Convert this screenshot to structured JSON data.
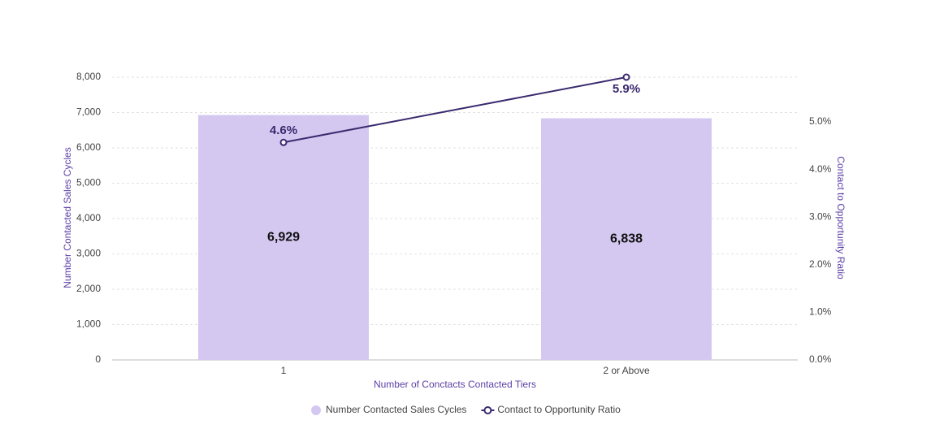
{
  "chart_data": {
    "type": "combo",
    "x_label": "Number of Conctacts Contacted Tiers",
    "y_label": "Number Contacted Sales Cycles",
    "y2_label": "Contact to Opportunity Ratio",
    "categories": [
      "1",
      "2 or Above"
    ],
    "series": [
      {
        "name": "Number Contacted Sales Cycles",
        "type": "bar",
        "color": "#d4c8f1",
        "values": [
          6929,
          6838
        ],
        "value_labels": [
          "6,929",
          "6,838"
        ]
      },
      {
        "name": "Contact to Opportunity Ratio",
        "type": "line",
        "axis": "y2",
        "color": "#3a2a6e",
        "values": [
          4.57,
          5.94
        ],
        "value_labels": [
          "4.6%",
          "5.9%"
        ]
      }
    ],
    "ylim": [
      0,
      8000
    ],
    "yticks": [
      0,
      {
        "value": 1000,
        "label": "1,000"
      },
      {
        "value": 2000,
        "label": "2,000"
      },
      {
        "value": 3000,
        "label": "3,000"
      },
      {
        "value": 4000,
        "label": "4,000"
      },
      {
        "value": 5000,
        "label": "5,000"
      },
      {
        "value": 6000,
        "label": "6,000"
      },
      {
        "value": 7000,
        "label": "7,000"
      },
      {
        "value": 8000,
        "label": "8,000"
      }
    ],
    "y2lim": [
      0,
      5.94
    ],
    "y2ticks": [
      {
        "value": 0,
        "label": "0.0%"
      },
      {
        "value": 1,
        "label": "1.0%"
      },
      {
        "value": 2,
        "label": "2.0%"
      },
      {
        "value": 3,
        "label": "3.0%"
      },
      {
        "value": 4,
        "label": "4.0%"
      },
      {
        "value": 5,
        "label": "5.0%"
      }
    ],
    "grid": true,
    "legend": "bottom"
  }
}
